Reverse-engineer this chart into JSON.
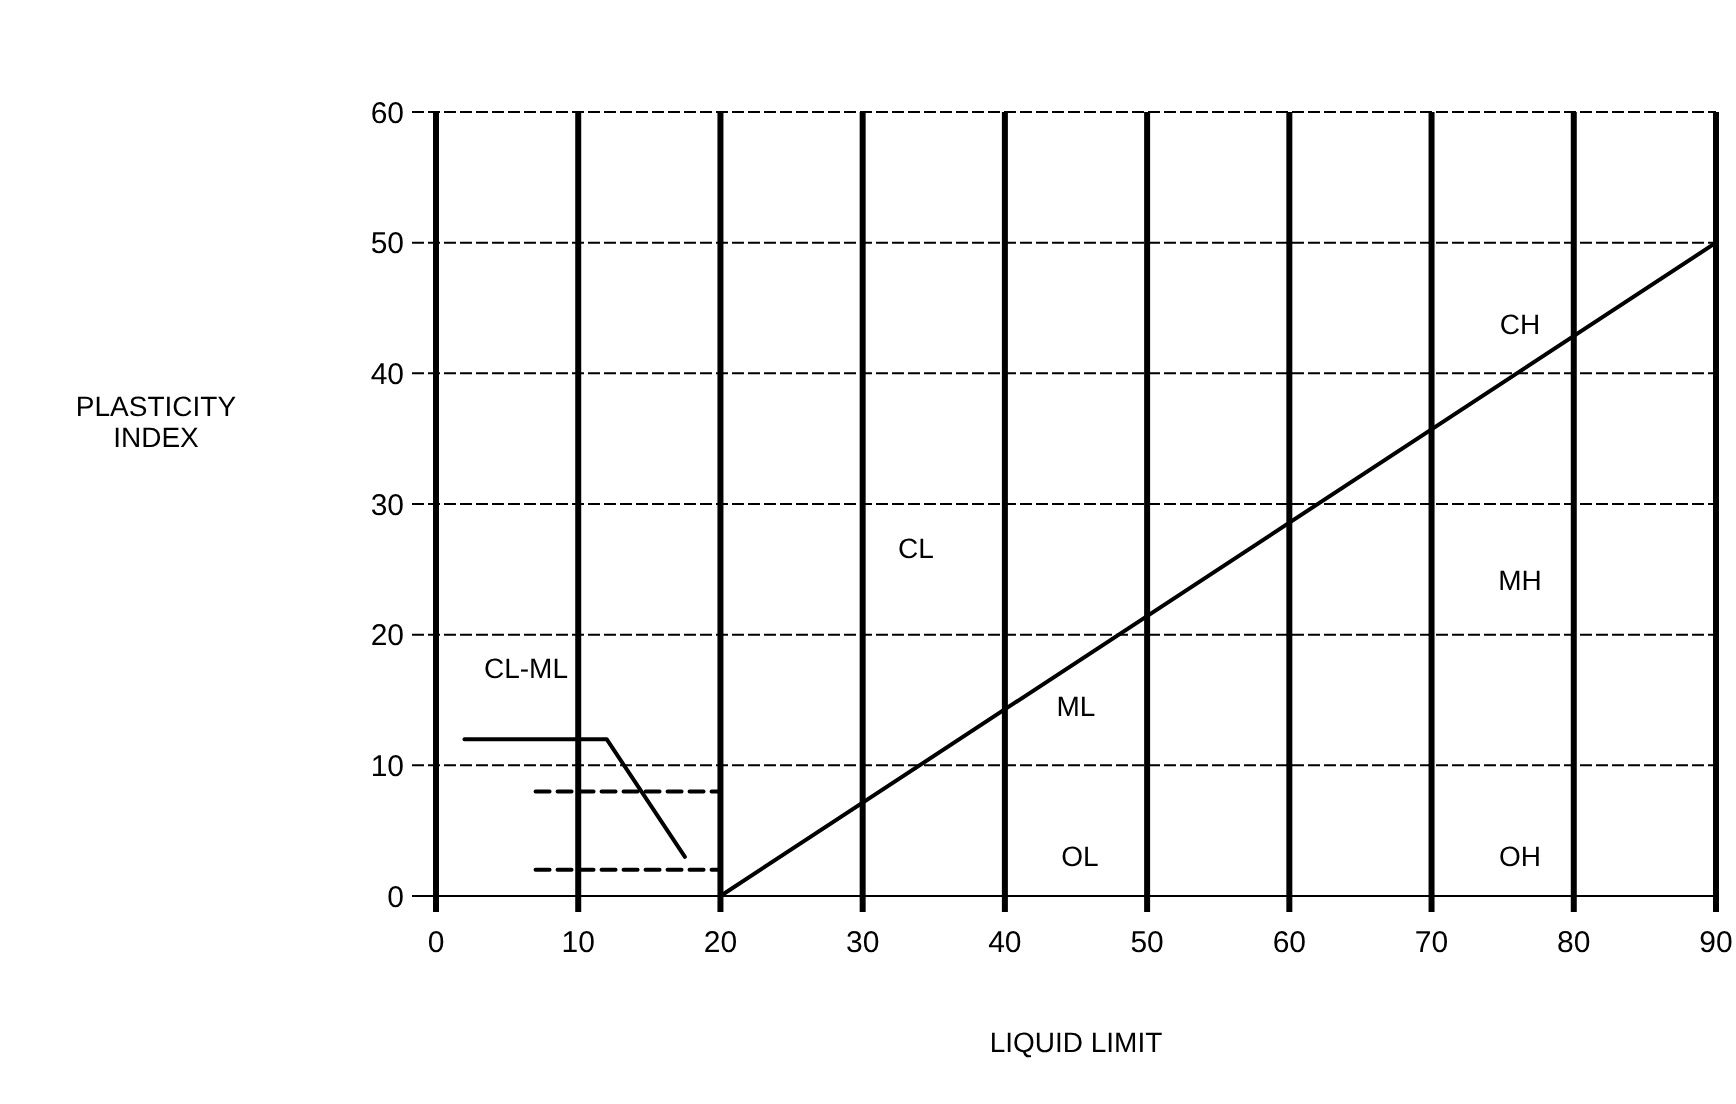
{
  "chart_data": {
    "type": "line",
    "xlabel": "LIQUID LIMIT",
    "ylabel": "PLASTICITY\nINDEX",
    "xlim": [
      0,
      90
    ],
    "ylim": [
      0,
      60
    ],
    "xticks": [
      0,
      10,
      20,
      30,
      40,
      50,
      60,
      70,
      80,
      90
    ],
    "yticks": [
      0,
      10,
      20,
      30,
      40,
      50,
      60
    ],
    "grid": true,
    "marker": "none",
    "series": [
      {
        "color": "#000000",
        "x": [
          20,
          90
        ],
        "values": [
          0,
          50
        ],
        "line_style": "solid"
      },
      {
        "color": "#000000",
        "x": [
          2,
          12,
          17.5
        ],
        "values": [
          12,
          12,
          3
        ],
        "line_style": "solid"
      },
      {
        "color": "#000000",
        "x": [
          7,
          20
        ],
        "values": [
          8,
          8
        ],
        "line_style": "dashed"
      },
      {
        "color": "#000000",
        "x": [
          7,
          20
        ],
        "values": [
          2,
          2
        ],
        "line_style": "dashed"
      }
    ],
    "annotations": [
      "CH",
      "CL",
      "MH",
      "ML",
      "OL",
      "OH",
      "CL-ML"
    ]
  }
}
